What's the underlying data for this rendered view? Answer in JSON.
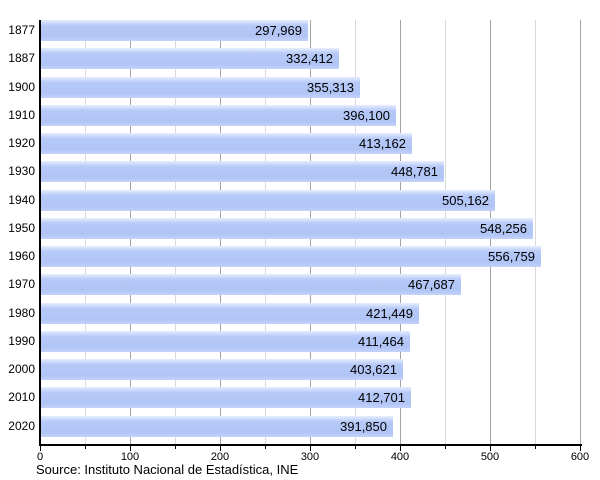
{
  "chart_data": {
    "type": "bar",
    "orientation": "horizontal",
    "title": "",
    "xlabel": "",
    "ylabel": "",
    "categories": [
      "1877",
      "1887",
      "1900",
      "1910",
      "1920",
      "1930",
      "1940",
      "1950",
      "1960",
      "1970",
      "1980",
      "1990",
      "2000",
      "2010",
      "2020"
    ],
    "values": [
      297969,
      332412,
      355313,
      396100,
      413162,
      448781,
      505162,
      548256,
      556759,
      467687,
      421449,
      411464,
      403621,
      412701,
      391850
    ],
    "value_labels": [
      "297,969",
      "332,412",
      "355,313",
      "396,100",
      "413,162",
      "448,781",
      "505,162",
      "548,256",
      "556,759",
      "467,687",
      "421,449",
      "411,464",
      "403,621",
      "412,701",
      "391,850"
    ],
    "x_axis": {
      "tick_labels": [
        "0",
        "100",
        "200",
        "300",
        "400",
        "500",
        "600"
      ],
      "tick_values": [
        0,
        100,
        200,
        300,
        400,
        500,
        600
      ],
      "minor_tick_step": 50,
      "max": 600,
      "scale_note": "axis in thousands"
    },
    "grid": "vertical, minor and major",
    "legend": "none",
    "source": "Source: Instituto Nacional de Estadística, INE"
  },
  "colors": {
    "bar_fill": "#b0c5f6",
    "bar_fill_highlight": "#e7eefd",
    "grid_major": "#a3a3a3",
    "grid_minor": "#d9d9d9",
    "axis": "#000000",
    "text": "#000000",
    "background": "#ffffff"
  }
}
